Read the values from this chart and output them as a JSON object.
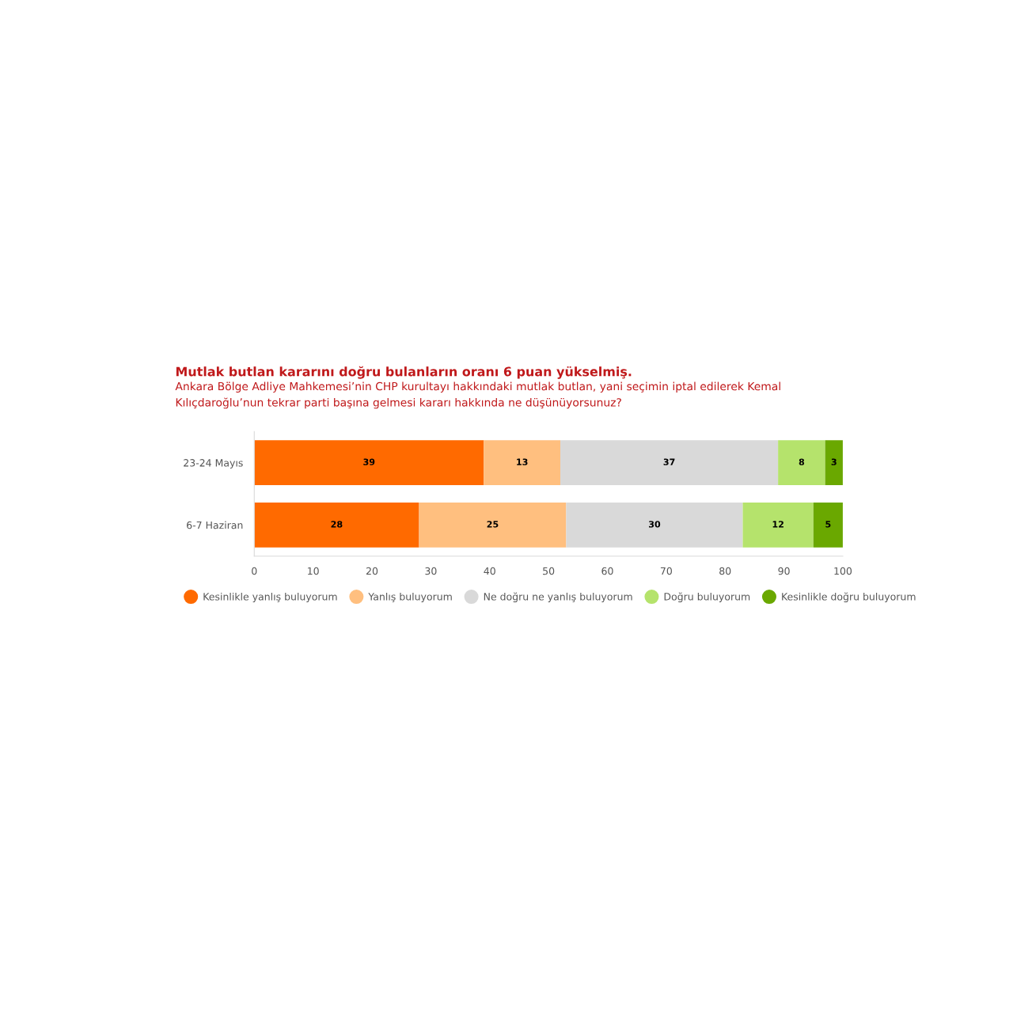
{
  "chart_data": {
    "type": "bar",
    "orientation": "horizontal",
    "stacked": true,
    "title": "Mutlak butlan kararını doğru bulanların oranı 6 puan yükselmiş.",
    "subtitle": "Ankara Bölge Adliye Mahkemesi’nin CHP kurultayı hakkındaki mutlak butlan, yani seçimin iptal edilerek Kemal\nKılıçdaroğlu’nun tekrar parti başına gelmesi kararı hakkında ne düşünüyorsunuz?",
    "categories": [
      "23-24 Mayıs",
      "6-7 Haziran"
    ],
    "series": [
      {
        "name": "Kesinlikle yanlış buluyorum",
        "color": "#ff6a00",
        "values": [
          39,
          28
        ]
      },
      {
        "name": "Yanlış buluyorum",
        "color": "#ffbf7f",
        "values": [
          13,
          25
        ]
      },
      {
        "name": "Ne doğru ne yanlış buluyorum",
        "color": "#d9d9d9",
        "values": [
          37,
          30
        ]
      },
      {
        "name": "Doğru buluyorum",
        "color": "#b5e36c",
        "values": [
          8,
          12
        ]
      },
      {
        "name": "Kesinlikle doğru buluyorum",
        "color": "#6aa800",
        "values": [
          3,
          5
        ]
      }
    ],
    "xlim": [
      0,
      100
    ],
    "xticks": [
      0,
      10,
      20,
      30,
      40,
      50,
      60,
      70,
      80,
      90,
      100
    ],
    "data_labels": true,
    "grid": false,
    "legend": "bottom"
  }
}
